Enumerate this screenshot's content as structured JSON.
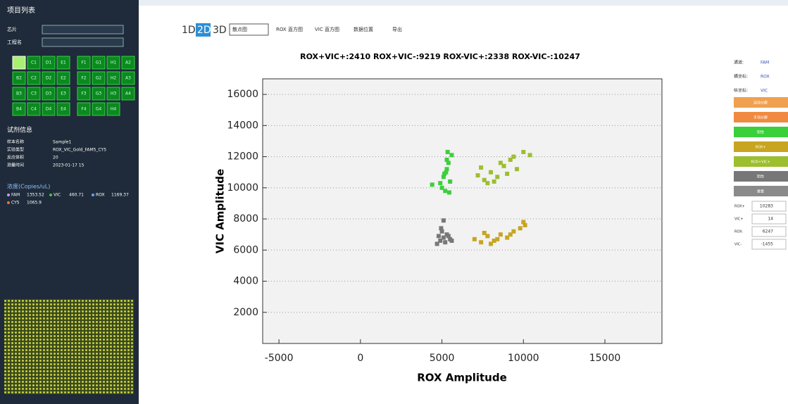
{
  "sidebar": {
    "title": "项目列表",
    "fields": [
      "芯片",
      "工程名"
    ],
    "wells": [
      "C1",
      "D1",
      "E1",
      "F1",
      "G1",
      "H1",
      "A2",
      "B2",
      "C2",
      "D2",
      "E2",
      "F2",
      "G2",
      "H2",
      "A3",
      "B3",
      "C3",
      "D3",
      "E3",
      "F3",
      "G3",
      "H3",
      "A4",
      "B4",
      "C4",
      "D4",
      "E4",
      "F4",
      "G4",
      "H4"
    ],
    "info_title": "试剂信息",
    "info": [
      {
        "label": "样本名称",
        "value": "Sample1"
      },
      {
        "label": "实验类型",
        "value": "ROX_VIC_Gold_FAM5_CY5"
      },
      {
        "label": "反应体积",
        "value": "20"
      },
      {
        "label": "测量时间",
        "value": "2023-01-17 15"
      }
    ],
    "conc_title": "浓度(Copies/uL)",
    "conc": [
      {
        "label": "FAM",
        "value": "1353.52"
      },
      {
        "label": "VIC",
        "value": "460.71"
      },
      {
        "label": "ROX",
        "value": "1169.37"
      },
      {
        "label": "CY5",
        "value": "1065.9"
      }
    ]
  },
  "toolbar": {
    "dims": [
      "1D",
      "2D",
      "3D"
    ],
    "active": 1,
    "buttons": [
      "散点图",
      "ROX 直方图",
      "VIC 直方图",
      "数据位置",
      "导出"
    ]
  },
  "chart_data": {
    "type": "scatter",
    "title": "ROX+VIC+:2410  ROX+VIC-:9219  ROX-VIC+:2338  ROX-VIC-:10247",
    "x_label": "ROX Amplitude",
    "y_label": "VIC Amplitude",
    "xlim": [
      -6000,
      18500
    ],
    "ylim": [
      0,
      17000
    ],
    "xticks": [
      -5000,
      0,
      5000,
      10000,
      15000
    ],
    "yticks": [
      2000,
      4000,
      6000,
      8000,
      10000,
      12000,
      14000,
      16000
    ],
    "grid": true,
    "series": [
      {
        "color": "#3ccf3c",
        "x": [
          4900,
          5100,
          5300,
          5200,
          5400,
          5600,
          5000,
          5250,
          5500,
          5150,
          5350,
          4400,
          5450,
          5300
        ],
        "values": [
          10300,
          10700,
          11200,
          9800,
          11600,
          12100,
          10000,
          11000,
          10400,
          10900,
          12300,
          10200,
          9700,
          11800
        ]
      },
      {
        "color": "#9cbf2e",
        "x": [
          7200,
          7600,
          8000,
          8400,
          8800,
          9200,
          9600,
          10000,
          7800,
          8600,
          9400,
          9000,
          10400,
          7400,
          8200
        ],
        "values": [
          10800,
          10500,
          11000,
          10700,
          11400,
          11800,
          11200,
          12300,
          10300,
          11600,
          12000,
          10900,
          12100,
          11300,
          10400
        ]
      },
      {
        "color": "#777777",
        "x": [
          4700,
          4900,
          5100,
          5300,
          5500,
          5000,
          5200,
          5400,
          4800,
          5600,
          5100,
          4950
        ],
        "values": [
          6400,
          6600,
          6800,
          7000,
          6700,
          7200,
          6500,
          6900,
          6900,
          6600,
          7900,
          7400
        ]
      },
      {
        "color": "#c8a520",
        "x": [
          7000,
          7400,
          7800,
          8200,
          8600,
          9000,
          9400,
          9800,
          10100,
          7600,
          8400,
          9200,
          8000,
          10000
        ],
        "values": [
          6700,
          6500,
          6900,
          6600,
          7000,
          6800,
          7200,
          7400,
          7600,
          7100,
          6700,
          7000,
          6400,
          7800
        ]
      }
    ]
  },
  "right_panel": {
    "selects": [
      {
        "label": "通道:",
        "value": "FAM"
      },
      {
        "label": "横坐标:",
        "value": "ROX"
      },
      {
        "label": "纵坐标:",
        "value": "VIC"
      }
    ],
    "buttons": [
      {
        "label": "自动分群",
        "color": "#f0a050"
      },
      {
        "label": "手动分群",
        "color": "#f08a40"
      },
      {
        "label": "阳性",
        "color": "#3ccf3c"
      },
      {
        "label": "ROX+",
        "color": "#c8a520"
      },
      {
        "label": "ROX+VIC+",
        "color": "#9cbf2e"
      },
      {
        "label": "阴性",
        "color": "#777777"
      },
      {
        "label": "重置",
        "color": "#8a8a8a"
      }
    ],
    "inputs": [
      {
        "label": "ROX+",
        "value": "10283"
      },
      {
        "label": "VIC+",
        "value": "14"
      },
      {
        "label": "ROX-",
        "value": "6247"
      },
      {
        "label": "VIC-",
        "value": "-1455"
      }
    ]
  }
}
